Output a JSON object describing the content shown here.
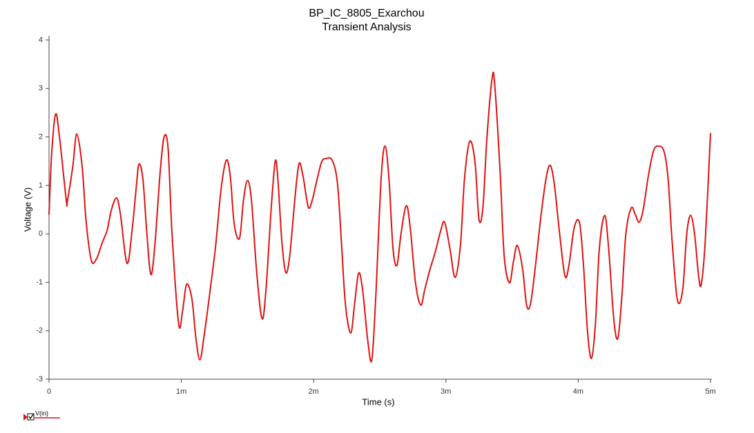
{
  "chart_data": {
    "type": "line",
    "title": "BP_IC_8805_Exarchou",
    "subtitle": "Transient Analysis",
    "xlabel": "Time (s)",
    "ylabel": "Voltage (V)",
    "xlim": [
      0,
      0.005
    ],
    "xticks": [
      0,
      {
        "value": 0.001,
        "label": "1m"
      },
      {
        "value": 0.002,
        "label": "2m"
      },
      {
        "value": 0.003,
        "label": "3m"
      },
      {
        "value": 0.004,
        "label": "4m"
      },
      {
        "value": 0.005,
        "label": "5m"
      }
    ],
    "ylim": [
      -3,
      4
    ],
    "yticks": [
      -3,
      -2,
      -1,
      0,
      1,
      2,
      3,
      4
    ],
    "grid": false,
    "legend": "bottom-left",
    "x": [
      0,
      2e-05,
      5e-05,
      8e-05,
      0.00013,
      0.00014,
      0.00018,
      0.00021,
      0.00025,
      0.00028,
      0.00032,
      0.00036,
      0.0004,
      0.00044,
      0.00047,
      0.00051,
      0.00054,
      0.00059,
      0.00063,
      0.00066,
      0.00068,
      0.00071,
      0.00074,
      0.00077,
      0.0008,
      0.00084,
      0.00087,
      0.0009,
      0.00093,
      0.00098,
      0.00101,
      0.00104,
      0.00108,
      0.00111,
      0.00114,
      0.00117,
      0.00122,
      0.00126,
      0.0013,
      0.00134,
      0.00137,
      0.0014,
      0.00144,
      0.00147,
      0.0015,
      0.00153,
      0.00157,
      0.00161,
      0.00164,
      0.00168,
      0.00171,
      0.00173,
      0.00176,
      0.00179,
      0.00182,
      0.00186,
      0.00189,
      0.00192,
      0.00196,
      0.00199,
      0.00202,
      0.00206,
      0.00209,
      0.00214,
      0.00218,
      0.00221,
      0.00224,
      0.00228,
      0.00231,
      0.00234,
      0.00237,
      0.00241,
      0.00244,
      0.00247,
      0.00251,
      0.00254,
      0.00257,
      0.0026,
      0.00263,
      0.00266,
      0.0027,
      0.00273,
      0.00277,
      0.00281,
      0.00284,
      0.00288,
      0.00292,
      0.00296,
      0.00299,
      0.00303,
      0.00307,
      0.00311,
      0.00314,
      0.00318,
      0.00322,
      0.00325,
      0.00328,
      0.00331,
      0.00335,
      0.00337,
      0.00341,
      0.00344,
      0.00348,
      0.00351,
      0.00354,
      0.00358,
      0.00361,
      0.00364,
      0.00368,
      0.00372,
      0.00376,
      0.00379,
      0.00382,
      0.00386,
      0.0039,
      0.00393,
      0.00397,
      0.00401,
      0.00404,
      0.00407,
      0.0041,
      0.00413,
      0.00416,
      0.0042,
      0.00423,
      0.00427,
      0.0043,
      0.00433,
      0.00436,
      0.0044,
      0.00443,
      0.00446,
      0.00449,
      0.00453,
      0.00457,
      0.00461,
      0.00465,
      0.00468,
      0.00471,
      0.00475,
      0.00479,
      0.00482,
      0.00485,
      0.00488,
      0.00491,
      0.00493,
      0.00496,
      0.005
    ],
    "series": [
      {
        "name": "V(in)",
        "color": "#e01010",
        "values": [
          0.4,
          1.66,
          2.47,
          1.98,
          0.7,
          0.7,
          1.4,
          2.06,
          1.4,
          0.27,
          -0.55,
          -0.51,
          -0.2,
          0.08,
          0.48,
          0.74,
          0.4,
          -0.61,
          0.13,
          0.98,
          1.44,
          1.12,
          -0.01,
          -0.84,
          -0.23,
          1.27,
          2.0,
          1.76,
          -0.01,
          -1.86,
          -1.58,
          -1.04,
          -1.34,
          -2.15,
          -2.6,
          -2.15,
          -1.12,
          -0.23,
          0.91,
          1.52,
          1.19,
          0.2,
          -0.09,
          0.7,
          1.1,
          0.7,
          -0.8,
          -1.75,
          -1.15,
          0.55,
          1.5,
          1.12,
          -0.16,
          -0.8,
          -0.44,
          0.77,
          1.45,
          1.19,
          0.55,
          0.7,
          1.05,
          1.48,
          1.55,
          1.52,
          1.05,
          -0.16,
          -1.44,
          -2.05,
          -1.44,
          -0.81,
          -1.15,
          -2.22,
          -2.6,
          -1.29,
          1.12,
          1.81,
          1.12,
          -0.3,
          -0.65,
          -0.01,
          0.58,
          0.13,
          -1.01,
          -1.47,
          -1.15,
          -0.73,
          -0.37,
          0.06,
          0.24,
          -0.3,
          -0.9,
          -0.23,
          1.12,
          1.91,
          1.48,
          0.3,
          0.55,
          1.98,
          3.23,
          3.04,
          1.27,
          -0.44,
          -1.01,
          -0.58,
          -0.24,
          -0.73,
          -1.47,
          -1.44,
          -0.58,
          0.41,
          1.19,
          1.41,
          1.01,
          -0.01,
          -0.87,
          -0.65,
          0.13,
          0.23,
          -0.65,
          -2.0,
          -2.57,
          -1.86,
          -0.3,
          0.38,
          -0.3,
          -1.79,
          -2.15,
          -1.29,
          -0.01,
          0.53,
          0.41,
          0.24,
          0.48,
          1.19,
          1.72,
          1.81,
          1.69,
          1.12,
          -0.16,
          -1.37,
          -1.15,
          -0.01,
          0.38,
          -0.01,
          -0.87,
          -1.04,
          -0.16,
          2.08
        ]
      }
    ]
  }
}
